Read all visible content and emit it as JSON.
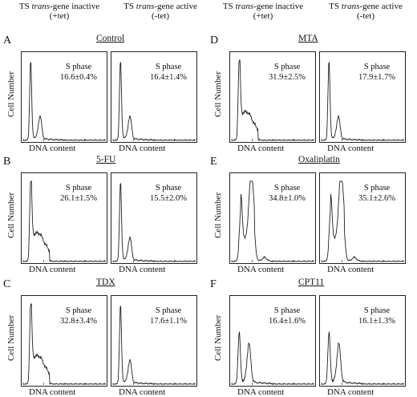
{
  "column_headers": {
    "inactive": {
      "prefix": "TS ",
      "italic": "trans",
      "rest": "-gene inactive",
      "tet": "(+tet)"
    },
    "active": {
      "prefix": "TS ",
      "italic": "trans",
      "rest": "-gene active",
      "tet": "(-tet)"
    }
  },
  "axis_labels": {
    "y": "Cell Number",
    "x": "DNA content"
  },
  "chart_data": [
    {
      "type": "area",
      "panel": "A",
      "title": "Control",
      "condition": "TS trans-gene inactive (+tet)",
      "annotation": "S phase",
      "s_phase": "16.6±0.4%",
      "profile": "g1_tall"
    },
    {
      "type": "area",
      "panel": "A",
      "title": "Control",
      "condition": "TS trans-gene active (-tet)",
      "annotation": "S phase",
      "s_phase": "16.4±1.4%",
      "profile": "g1_tall"
    },
    {
      "type": "area",
      "panel": "B",
      "title": "5-FU",
      "condition": "TS trans-gene inactive (+tet)",
      "annotation": "S phase",
      "s_phase": "26.1±1.5%",
      "profile": "broad_s"
    },
    {
      "type": "area",
      "panel": "B",
      "title": "5-FU",
      "condition": "TS trans-gene active (-tet)",
      "annotation": "S phase",
      "s_phase": "15.5±2.0%",
      "profile": "g1_tall"
    },
    {
      "type": "area",
      "panel": "C",
      "title": "TDX",
      "condition": "TS trans-gene inactive (+tet)",
      "annotation": "S phase",
      "s_phase": "32.8±3.4%",
      "profile": "broad_s"
    },
    {
      "type": "area",
      "panel": "C",
      "title": "TDX",
      "condition": "TS trans-gene active (-tet)",
      "annotation": "S phase",
      "s_phase": "17.6±1.1%",
      "profile": "g1_tall"
    },
    {
      "type": "area",
      "panel": "D",
      "title": "MTA",
      "condition": "TS trans-gene inactive (+tet)",
      "annotation": "S phase",
      "s_phase": "31.9±2.5%",
      "profile": "broad_s"
    },
    {
      "type": "area",
      "panel": "D",
      "title": "MTA",
      "condition": "TS trans-gene active (-tet)",
      "annotation": "S phase",
      "s_phase": "17.9±1.7%",
      "profile": "g1_tall"
    },
    {
      "type": "area",
      "panel": "E",
      "title": "Oxaliplatin",
      "condition": "TS trans-gene inactive (+tet)",
      "annotation": "S phase",
      "s_phase": "34.8±1.0%",
      "profile": "double"
    },
    {
      "type": "area",
      "panel": "E",
      "title": "Oxaliplatin",
      "condition": "TS trans-gene active (-tet)",
      "annotation": "S phase",
      "s_phase": "35.1±2.6%",
      "profile": "double"
    },
    {
      "type": "area",
      "panel": "F",
      "title": "CPT11",
      "condition": "TS trans-gene inactive (+tet)",
      "annotation": "S phase",
      "s_phase": "16.4±1.6%",
      "profile": "g1_mid"
    },
    {
      "type": "area",
      "panel": "F",
      "title": "CPT11",
      "condition": "TS trans-gene active (-tet)",
      "annotation": "S phase",
      "s_phase": "16.1±1.3%",
      "profile": "g1_mid"
    }
  ]
}
